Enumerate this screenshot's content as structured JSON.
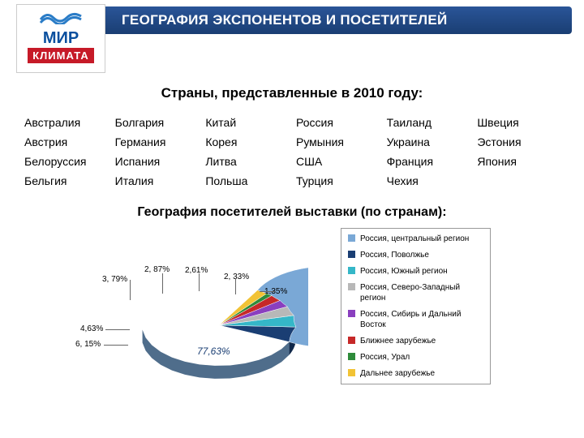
{
  "logo": {
    "top": "МИР",
    "bottom": "КЛИМАТА",
    "wave_color": "#2a7cc7"
  },
  "header_title": "ГЕОГРАФИЯ ЭКСПОНЕНТОВ И ПОСЕТИТЕЛЕЙ",
  "subtitle": "Страны, представленные в 2010 году:",
  "countries": [
    "Австралия",
    "Болгария",
    "Китай",
    "Россия",
    "Таиланд",
    "Швеция",
    "Австрия",
    "Германия",
    "Корея",
    "Румыния",
    "Украина",
    "Эстония",
    "Белоруссия",
    "Испания",
    "Литва",
    "США",
    "Франция",
    "Япония",
    "Бельгия",
    "Италия",
    "Польша",
    "Турция",
    "Чехия",
    ""
  ],
  "section_heading": "География посетителей выставки (по странам):",
  "pie": {
    "type": "pie",
    "background_color": "#ffffff",
    "label_fontsize": 10,
    "slices": [
      {
        "name": "Россия, центральный регион",
        "value": 77.63,
        "label": "77,63%",
        "color": "#7aa8d6"
      },
      {
        "name": "Россия, Поволжье",
        "value": 6.15,
        "label": "6, 15%",
        "color": "#1a3e73"
      },
      {
        "name": "Россия, Южный регион",
        "value": 4.63,
        "label": "4,63%",
        "color": "#35b7c8"
      },
      {
        "name": "Россия, Северо-Западный регион",
        "value": 3.79,
        "label": "3, 79%",
        "color": "#b8b8b8"
      },
      {
        "name": "Россия, Сибирь и Дальний Восток",
        "value": 2.87,
        "label": "2, 87%",
        "color": "#8a3fbf"
      },
      {
        "name": "Ближнее зарубежье",
        "value": 2.61,
        "label": "2,61%",
        "color": "#c62828"
      },
      {
        "name": "Россия, Урал",
        "value": 1.35,
        "label": "1,35%",
        "color": "#2e8b3a"
      },
      {
        "name": "Дальнее зарубежье",
        "value": 2.33,
        "label": "2, 33%",
        "color": "#f2c335"
      }
    ]
  }
}
